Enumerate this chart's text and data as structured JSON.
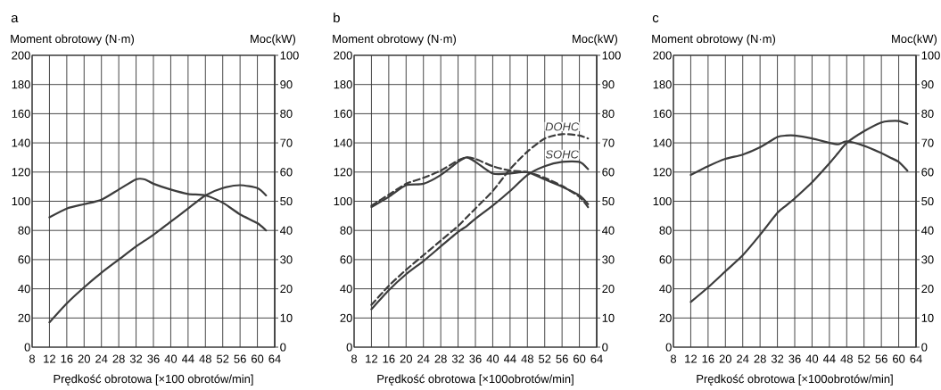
{
  "chart_data": [
    {
      "type": "line",
      "title": "a",
      "ylabel": "Moment obrotowy (N·m)",
      "y2label": "Moc(kW)",
      "xlabel": "Prędkość obrotowa [×100 obrotów/min]",
      "xlim": [
        8,
        64
      ],
      "xticks": [
        8,
        12,
        16,
        20,
        24,
        28,
        32,
        36,
        40,
        44,
        48,
        52,
        56,
        60,
        64
      ],
      "ylim": [
        0,
        200
      ],
      "yticks": [
        0,
        20,
        40,
        60,
        80,
        100,
        120,
        140,
        160,
        180,
        200
      ],
      "y2lim": [
        0,
        100
      ],
      "y2ticks": [
        0,
        10,
        20,
        30,
        40,
        50,
        60,
        70,
        80,
        90,
        100
      ],
      "grid": true,
      "x": [
        12,
        16,
        20,
        24,
        28,
        32,
        34,
        36,
        40,
        44,
        48,
        52,
        56,
        60,
        62
      ],
      "series": [
        {
          "color": "#3c3c3c",
          "line_style": "solid",
          "axis": "y",
          "values": [
            89,
            95,
            98,
            101,
            108,
            115,
            115,
            112,
            108,
            105,
            104,
            99,
            91,
            85,
            80
          ]
        },
        {
          "color": "#3c3c3c",
          "line_style": "solid",
          "axis": "y2",
          "values": [
            8.5,
            15,
            20.5,
            25.5,
            30,
            34.5,
            36.5,
            38.5,
            43,
            47.5,
            52,
            54.5,
            55.5,
            54.5,
            52
          ]
        }
      ]
    },
    {
      "type": "line",
      "title": "b",
      "ylabel": "Moment obrotowy (N·m)",
      "y2label": "Moc(kW)",
      "xlabel": "Prędkość obrotowa [×100obrotów/min]",
      "xlim": [
        8,
        64
      ],
      "xticks": [
        8,
        12,
        16,
        20,
        24,
        28,
        32,
        36,
        40,
        44,
        48,
        52,
        56,
        60,
        64
      ],
      "ylim": [
        0,
        200
      ],
      "yticks": [
        0,
        20,
        40,
        60,
        80,
        100,
        120,
        140,
        160,
        180,
        200
      ],
      "y2lim": [
        0,
        100
      ],
      "y2ticks": [
        0,
        10,
        20,
        30,
        40,
        50,
        60,
        70,
        80,
        90,
        100
      ],
      "grid": true,
      "x": [
        12,
        16,
        20,
        24,
        28,
        32,
        34,
        36,
        40,
        44,
        48,
        52,
        56,
        60,
        62
      ],
      "series": [
        {
          "color": "#3c3c3c",
          "line_style": "solid",
          "axis": "y",
          "values": [
            96,
            103,
            111,
            112,
            118,
            127,
            130,
            127,
            119,
            119,
            120,
            115,
            110,
            104,
            98
          ]
        },
        {
          "color": "#3c3c3c",
          "line_style": "dashed",
          "axis": "y",
          "values": [
            97,
            104.5,
            112,
            116,
            121,
            128,
            130,
            129,
            124,
            121,
            120,
            116,
            110.5,
            103,
            96
          ]
        },
        {
          "name": "SOHC",
          "color": "#3c3c3c",
          "line_style": "solid",
          "axis": "y2",
          "values": [
            13,
            19.5,
            25,
            29.5,
            34.5,
            39.5,
            41.5,
            44,
            48.5,
            53.5,
            59,
            62,
            63.5,
            63.5,
            61
          ]
        },
        {
          "name": "DOHC",
          "color": "#3c3c3c",
          "line_style": "dashed",
          "axis": "y2",
          "values": [
            14.5,
            21,
            26.5,
            31.5,
            36.5,
            41.5,
            44.5,
            47.5,
            53.5,
            61,
            67,
            71.5,
            73,
            72.5,
            71.5
          ]
        }
      ]
    },
    {
      "type": "line",
      "title": "c",
      "ylabel": "Moment obrotowy (N·m)",
      "y2label": "Moc(kW)",
      "xlabel": "Prędkość obrotowa [×100obrotów/min]",
      "xlim": [
        8,
        64
      ],
      "xticks": [
        8,
        12,
        16,
        20,
        24,
        28,
        32,
        36,
        40,
        44,
        48,
        52,
        56,
        60,
        64
      ],
      "ylim": [
        0,
        200
      ],
      "yticks": [
        0,
        20,
        40,
        60,
        80,
        100,
        120,
        140,
        160,
        180,
        200
      ],
      "y2lim": [
        0,
        100
      ],
      "y2ticks": [
        0,
        10,
        20,
        30,
        40,
        50,
        60,
        70,
        80,
        90,
        100
      ],
      "grid": true,
      "x": [
        12,
        16,
        20,
        24,
        28,
        32,
        34,
        36,
        40,
        44,
        46,
        48,
        52,
        56,
        58,
        60,
        62
      ],
      "series": [
        {
          "color": "#3c3c3c",
          "line_style": "solid",
          "axis": "y",
          "values": [
            118,
            124,
            129,
            132,
            137,
            144,
            145,
            145,
            143,
            140,
            139,
            141,
            138,
            133,
            130,
            127,
            121
          ]
        },
        {
          "color": "#3c3c3c",
          "line_style": "solid",
          "axis": "y2",
          "values": [
            15.5,
            20.5,
            26,
            31.5,
            38.5,
            46,
            48.5,
            51,
            56.5,
            63,
            66.5,
            70,
            74,
            77,
            77.5,
            77.5,
            76.5
          ]
        }
      ]
    }
  ]
}
